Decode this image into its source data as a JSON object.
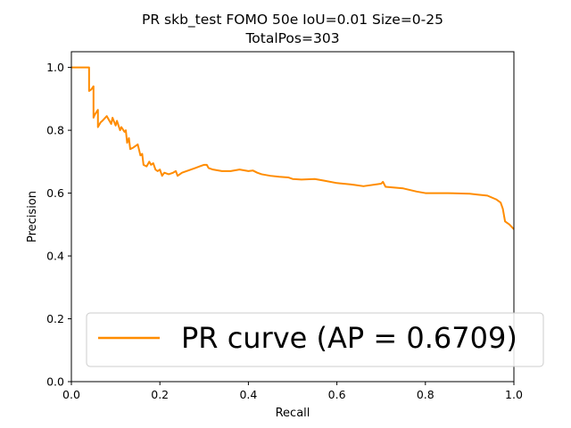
{
  "chart_data": {
    "type": "line",
    "title": "PR skb_test FOMO 50e IoU=0.01 Size=0-25",
    "subtitle": "TotalPos=303",
    "xlabel": "Recall",
    "ylabel": "Precision",
    "xlim": [
      0.0,
      1.0
    ],
    "ylim": [
      0.0,
      1.05
    ],
    "xticks": [
      "0.0",
      "0.2",
      "0.4",
      "0.6",
      "0.8",
      "1.0"
    ],
    "yticks": [
      "0.0",
      "0.2",
      "0.4",
      "0.6",
      "0.8",
      "1.0"
    ],
    "grid": false,
    "legend_position": "lower-right",
    "series": [
      {
        "name": "PR curve (AP = 0.6709)",
        "color": "#ff8c00",
        "x": [
          0.0,
          0.037,
          0.037,
          0.04,
          0.04,
          0.045,
          0.05,
          0.05,
          0.053,
          0.06,
          0.06,
          0.066,
          0.07,
          0.08,
          0.09,
          0.093,
          0.1,
          0.103,
          0.11,
          0.113,
          0.12,
          0.123,
          0.126,
          0.13,
          0.133,
          0.14,
          0.15,
          0.156,
          0.16,
          0.163,
          0.17,
          0.176,
          0.18,
          0.185,
          0.19,
          0.195,
          0.2,
          0.205,
          0.21,
          0.22,
          0.23,
          0.236,
          0.24,
          0.25,
          0.26,
          0.27,
          0.28,
          0.29,
          0.3,
          0.306,
          0.31,
          0.32,
          0.34,
          0.36,
          0.38,
          0.4,
          0.41,
          0.42,
          0.43,
          0.45,
          0.47,
          0.49,
          0.5,
          0.52,
          0.55,
          0.57,
          0.6,
          0.63,
          0.64,
          0.66,
          0.7,
          0.704,
          0.71,
          0.75,
          0.78,
          0.8,
          0.85,
          0.9,
          0.92,
          0.94,
          0.96,
          0.97,
          0.975,
          0.98,
          0.99,
          1.0
        ],
        "y": [
          1.0,
          1.0,
          1.0,
          1.0,
          0.925,
          0.93,
          0.94,
          0.84,
          0.85,
          0.865,
          0.81,
          0.825,
          0.83,
          0.845,
          0.82,
          0.84,
          0.815,
          0.83,
          0.8,
          0.81,
          0.795,
          0.8,
          0.76,
          0.775,
          0.74,
          0.745,
          0.755,
          0.72,
          0.725,
          0.69,
          0.685,
          0.7,
          0.69,
          0.695,
          0.675,
          0.67,
          0.675,
          0.655,
          0.665,
          0.66,
          0.665,
          0.67,
          0.655,
          0.665,
          0.67,
          0.675,
          0.68,
          0.685,
          0.69,
          0.69,
          0.68,
          0.675,
          0.67,
          0.67,
          0.675,
          0.67,
          0.672,
          0.665,
          0.66,
          0.655,
          0.652,
          0.65,
          0.645,
          0.643,
          0.645,
          0.64,
          0.632,
          0.628,
          0.626,
          0.622,
          0.63,
          0.636,
          0.62,
          0.615,
          0.605,
          0.6,
          0.6,
          0.598,
          0.595,
          0.592,
          0.58,
          0.57,
          0.55,
          0.51,
          0.5,
          0.485
        ]
      }
    ]
  }
}
